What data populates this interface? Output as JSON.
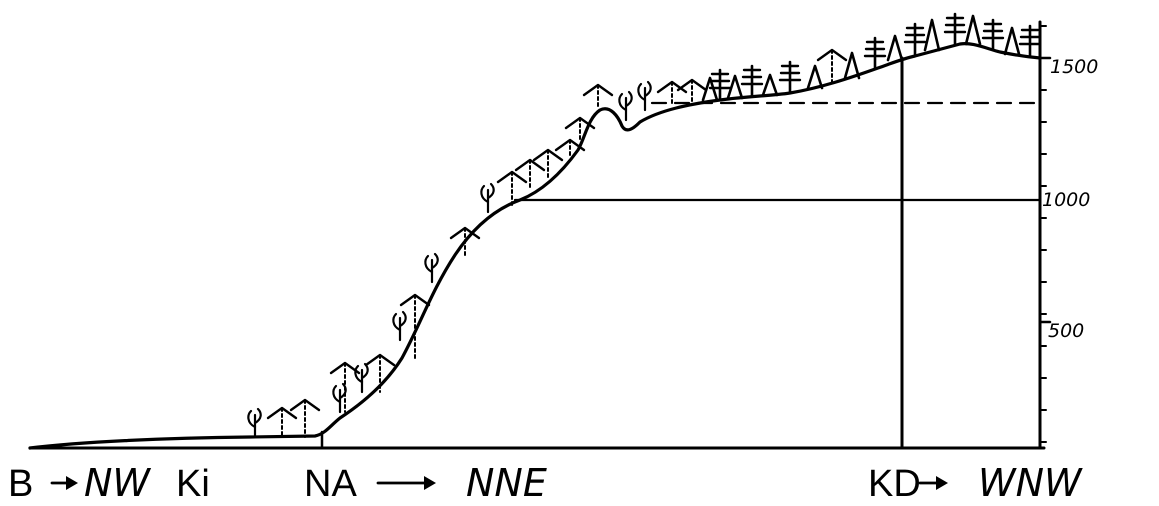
{
  "axis": {
    "ticks": [
      {
        "label": "1500",
        "value": 1500
      },
      {
        "label": "1000",
        "value": 1000
      },
      {
        "label": "500",
        "value": 500
      }
    ]
  },
  "labels": {
    "b": "B",
    "nw": "NW",
    "ki": "Ki",
    "na": "NA",
    "nne": "NNE",
    "kd": "KD",
    "wnw": "WNW"
  },
  "icons": [
    "arrow-right-icon",
    "broadleaf-tree-icon",
    "coniferous-tree-icon",
    "deciduous-tree-icon"
  ]
}
